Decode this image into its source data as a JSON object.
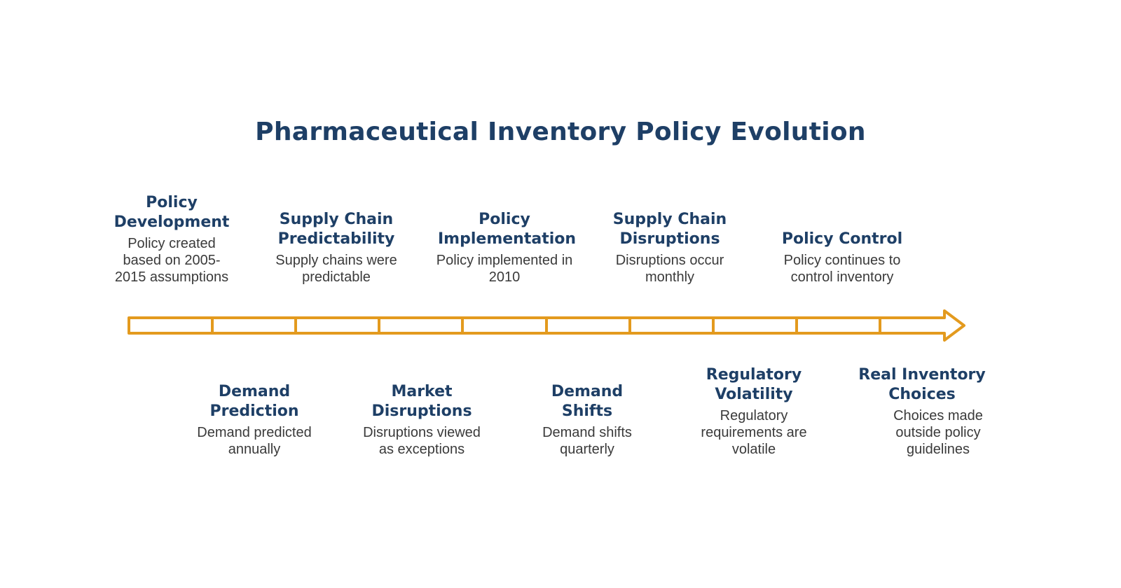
{
  "title": "Pharmaceutical Inventory Policy Evolution",
  "colors": {
    "title": "#1e3f66",
    "text": "#3a3a3a",
    "arrow": "#e39a1e"
  },
  "events_top": [
    {
      "title": "Policy Development",
      "desc": "Policy created based on 2005-2015 assumptions"
    },
    {
      "title": "Supply Chain Predictability",
      "desc": "Supply chains were predictable"
    },
    {
      "title": "Policy Implementation",
      "desc": "Policy implemented in 2010"
    },
    {
      "title": "Supply Chain Disruptions",
      "desc": "Disruptions occur monthly"
    },
    {
      "title": "Policy Control",
      "desc": "Policy continues to control inventory"
    }
  ],
  "events_bottom": [
    {
      "title": "Demand Prediction",
      "desc": "Demand predicted annually"
    },
    {
      "title": "Market Disruptions",
      "desc": "Disruptions viewed as exceptions"
    },
    {
      "title": "Demand Shifts",
      "desc": "Demand shifts quarterly"
    },
    {
      "title": "Regulatory Volatility",
      "desc": "Regulatory requirements are volatile"
    },
    {
      "title": "Real Inventory Choices",
      "desc": "Choices made outside policy guidelines"
    }
  ]
}
